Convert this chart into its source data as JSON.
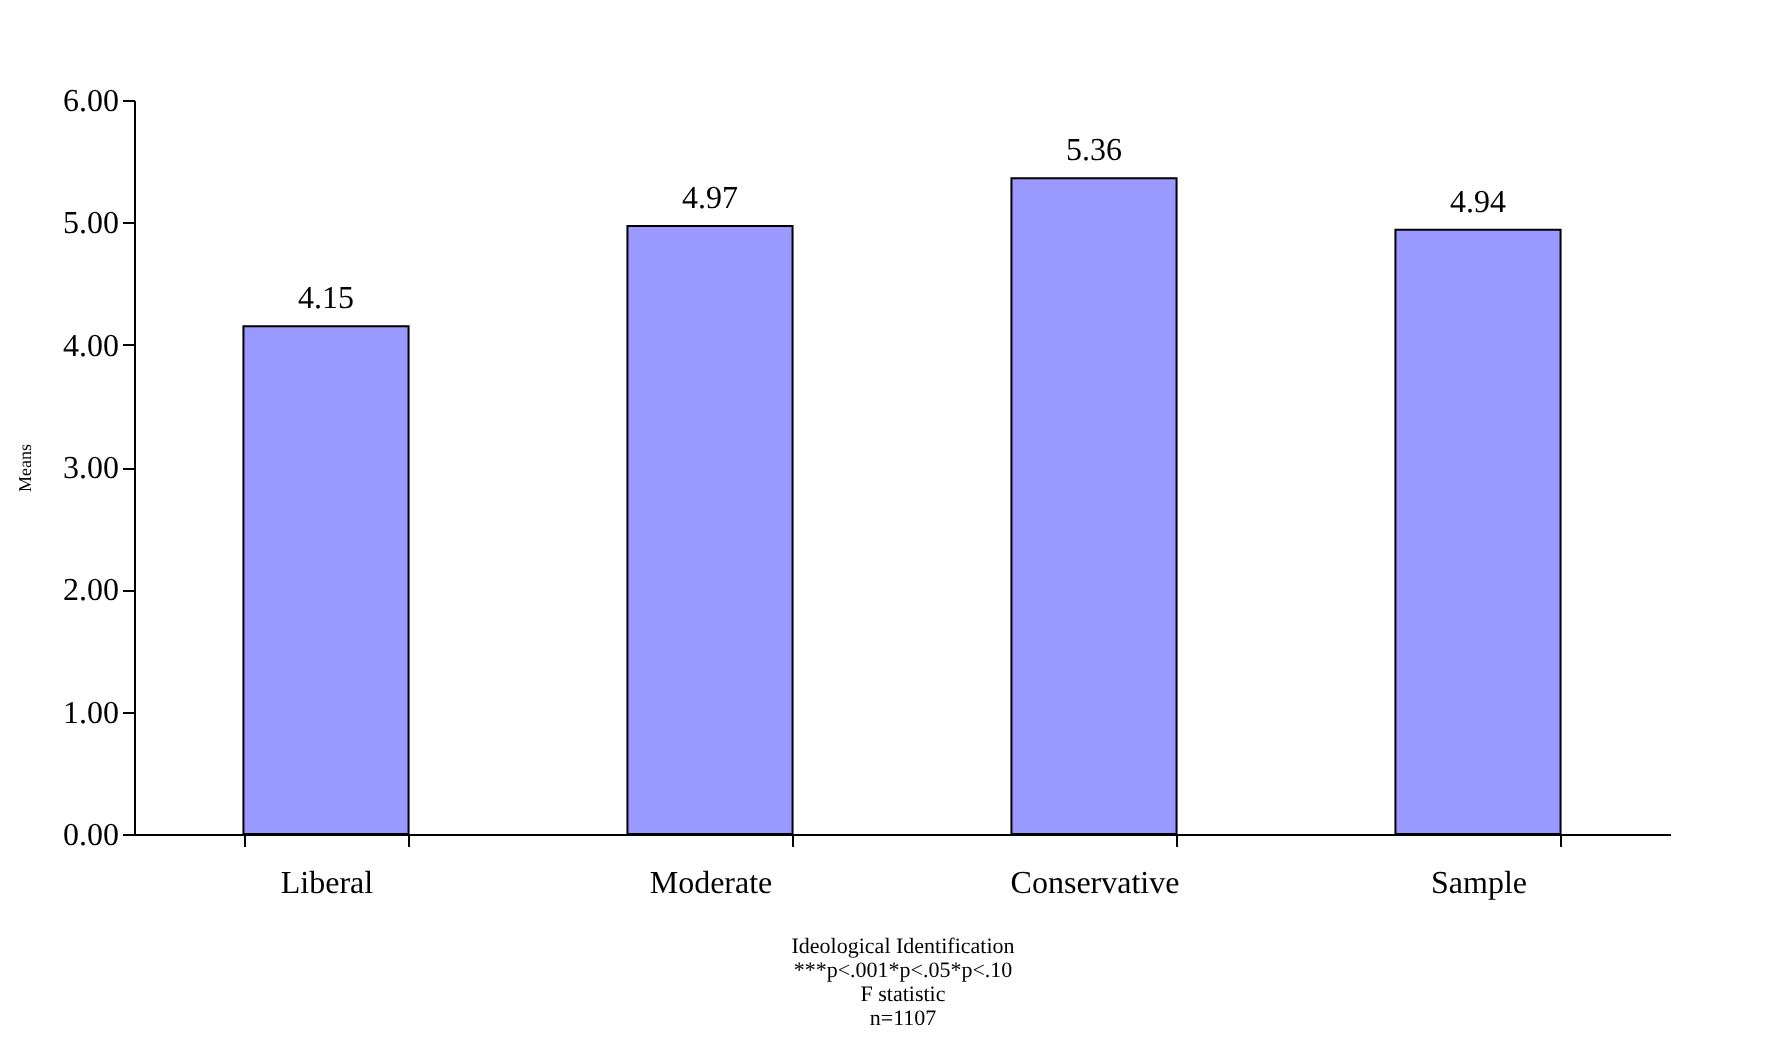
{
  "chart_data": {
    "type": "bar",
    "ylabel": "Means",
    "xlabel": "Ideological Identification",
    "annotations": [
      "***p<.001*p<.05*p<.10",
      "F statistic",
      "n=1107"
    ],
    "categories": [
      "Liberal",
      "Moderate",
      "Conservative",
      "Sample"
    ],
    "values": [
      4.15,
      4.97,
      5.36,
      4.94
    ],
    "color": "#9999ff",
    "data_labels": true,
    "ylim": [
      0,
      6
    ],
    "yticks": [
      {
        "value": 0,
        "label": "0.00"
      },
      {
        "value": 1,
        "label": "1.00"
      },
      {
        "value": 2,
        "label": "2.00"
      },
      {
        "value": 3,
        "label": "3.00"
      },
      {
        "value": 4,
        "label": "4.00"
      },
      {
        "value": 5,
        "label": "5.00"
      },
      {
        "value": 6,
        "label": "6.00"
      }
    ],
    "grid": false
  }
}
